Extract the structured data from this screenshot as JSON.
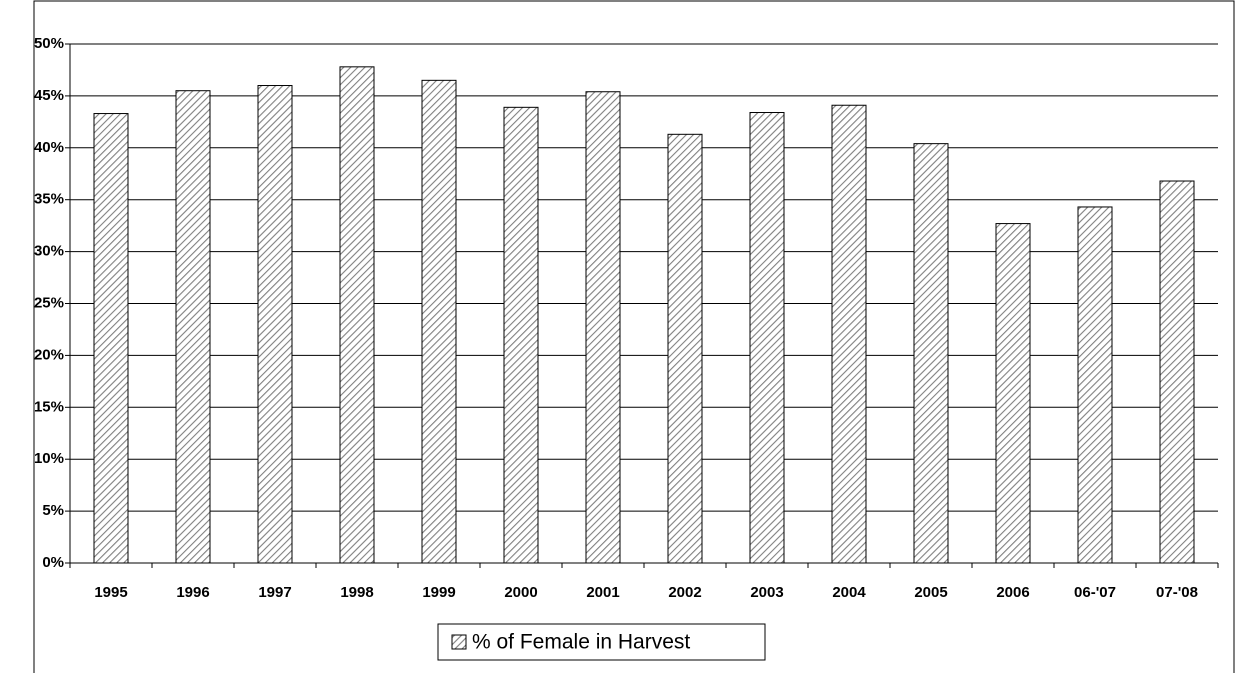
{
  "chart_data": {
    "type": "bar",
    "categories": [
      "1995",
      "1996",
      "1997",
      "1998",
      "1999",
      "2000",
      "2001",
      "2002",
      "2003",
      "2004",
      "2005",
      "2006",
      "06-'07",
      "07-'08"
    ],
    "series": [
      {
        "name": "% of Female in Harvest",
        "color": "#808080",
        "values": [
          43.3,
          45.5,
          46.0,
          47.8,
          46.5,
          43.9,
          45.4,
          41.3,
          43.4,
          44.1,
          40.4,
          32.7,
          34.3,
          36.8
        ]
      }
    ],
    "ylim": [
      0,
      50
    ],
    "yticks": [
      {
        "value": 0,
        "label": "0%"
      },
      {
        "value": 5,
        "label": "5%"
      },
      {
        "value": 10,
        "label": "10%"
      },
      {
        "value": 15,
        "label": "15%"
      },
      {
        "value": 20,
        "label": "20%"
      },
      {
        "value": 25,
        "label": "25%"
      },
      {
        "value": 30,
        "label": "30%"
      },
      {
        "value": 35,
        "label": "35%"
      },
      {
        "value": 40,
        "label": "40%"
      },
      {
        "value": 45,
        "label": "45%"
      },
      {
        "value": 50,
        "label": "50%"
      }
    ],
    "grid": true,
    "legend": "bottom"
  }
}
